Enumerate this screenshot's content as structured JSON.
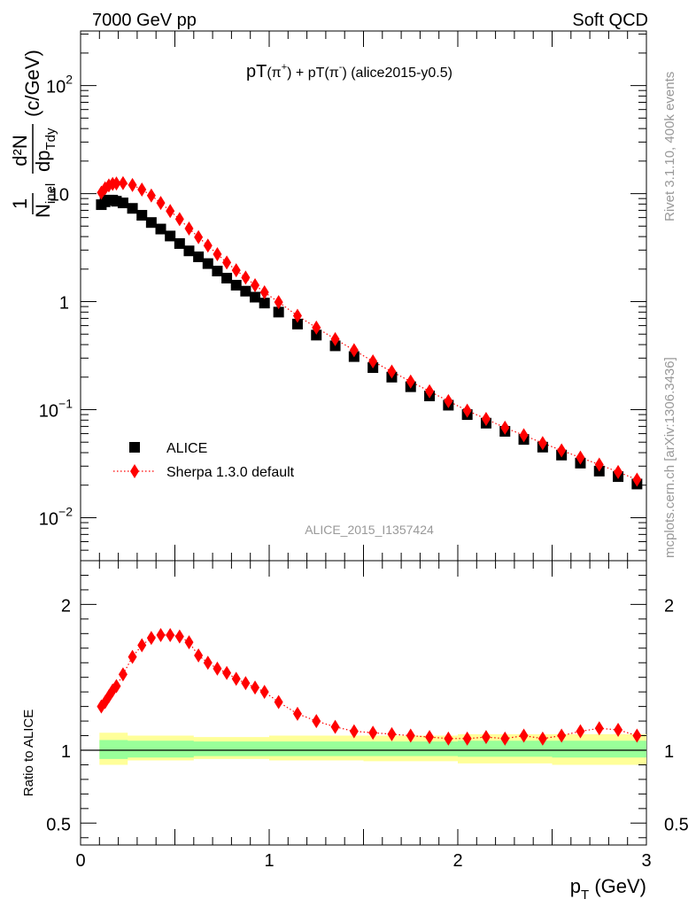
{
  "header": {
    "left": "7000 GeV pp",
    "right": "Soft QCD"
  },
  "side_labels": {
    "top": "Rivet 3.1.10,  400k events",
    "bottom": "mcplots.cern.ch [arXiv:1306.3436]"
  },
  "analysis_label": "ALICE_2015_I1357424",
  "chart_data": [
    {
      "type": "scatter",
      "title": "pT(π+) + pT(π-) (alice2015-y0.5)",
      "title_parts": {
        "a": "pT",
        "b": "(π",
        "c": "+",
        "d": ")",
        "e": " + pT(π",
        "f": "-",
        "g": ")",
        "h": " (alice2015-y0.5)"
      },
      "xlabel": "p_T (GeV)",
      "ylabel": "1/N_inel d²N/dp_T dy (c/GeV)",
      "ylabel_parts": {
        "one": "1",
        "n": "N",
        "inel": "inel",
        "d2n": "d²N",
        "dp": "dp",
        "tdy": "Tdy",
        "unit": "(c/GeV)"
      },
      "xlim": [
        0,
        3
      ],
      "ylim": [
        0.004,
        320
      ],
      "yscale": "log",
      "ytick_labels": [
        {
          "value": 0.01,
          "base": "10",
          "exp": "−2"
        },
        {
          "value": 0.1,
          "base": "10",
          "exp": "−1"
        },
        {
          "value": 1,
          "base": "1",
          "exp": ""
        },
        {
          "value": 10,
          "base": "10",
          "exp": ""
        },
        {
          "value": 100,
          "base": "10",
          "exp": "2"
        }
      ],
      "legend": {
        "placement": "lower-left",
        "entries": [
          "ALICE",
          "Sherpa 1.3.0 default"
        ]
      },
      "series": [
        {
          "name": "ALICE",
          "marker": "square",
          "color": "#000000",
          "x": [
            0.11,
            0.13,
            0.15,
            0.17,
            0.19,
            0.225,
            0.275,
            0.325,
            0.375,
            0.425,
            0.475,
            0.525,
            0.575,
            0.625,
            0.675,
            0.725,
            0.775,
            0.825,
            0.875,
            0.925,
            0.975,
            1.05,
            1.15,
            1.25,
            1.35,
            1.45,
            1.55,
            1.65,
            1.75,
            1.85,
            1.95,
            2.05,
            2.15,
            2.25,
            2.35,
            2.45,
            2.55,
            2.65,
            2.75,
            2.85,
            2.95
          ],
          "y": [
            7.9,
            8.4,
            8.7,
            8.7,
            8.5,
            8.2,
            7.3,
            6.3,
            5.4,
            4.7,
            4.05,
            3.45,
            2.95,
            2.6,
            2.25,
            1.92,
            1.65,
            1.42,
            1.25,
            1.1,
            0.97,
            0.8,
            0.62,
            0.49,
            0.39,
            0.31,
            0.245,
            0.2,
            0.163,
            0.134,
            0.11,
            0.09,
            0.075,
            0.063,
            0.053,
            0.045,
            0.038,
            0.032,
            0.027,
            0.024,
            0.0205
          ]
        },
        {
          "name": "Sherpa 1.3.0 default",
          "marker": "diamond",
          "line": "dotted",
          "color": "#ff0000",
          "x": [
            0.11,
            0.13,
            0.15,
            0.17,
            0.19,
            0.225,
            0.275,
            0.325,
            0.375,
            0.425,
            0.475,
            0.525,
            0.575,
            0.625,
            0.675,
            0.725,
            0.775,
            0.825,
            0.875,
            0.925,
            0.975,
            1.05,
            1.15,
            1.25,
            1.35,
            1.45,
            1.55,
            1.65,
            1.75,
            1.85,
            1.95,
            2.05,
            2.15,
            2.25,
            2.35,
            2.45,
            2.55,
            2.65,
            2.75,
            2.85,
            2.95
          ],
          "y": [
            10.2,
            11.2,
            11.9,
            12.3,
            12.4,
            12.5,
            12.0,
            10.9,
            9.6,
            8.2,
            6.9,
            5.8,
            4.75,
            3.95,
            3.3,
            2.75,
            2.3,
            1.95,
            1.67,
            1.42,
            1.22,
            0.99,
            0.74,
            0.575,
            0.45,
            0.355,
            0.28,
            0.225,
            0.182,
            0.148,
            0.12,
            0.098,
            0.082,
            0.068,
            0.058,
            0.049,
            0.042,
            0.036,
            0.031,
            0.0265,
            0.0225
          ]
        }
      ]
    },
    {
      "type": "scatter",
      "ylabel": "Ratio to ALICE",
      "xlabel": "p_T (GeV)",
      "xlim": [
        0,
        3
      ],
      "ylim": [
        0.35,
        2.3
      ],
      "yticks": [
        0.5,
        1,
        2
      ],
      "ytick_text": [
        "0.5",
        "1",
        "2"
      ],
      "xticks": [
        0,
        1,
        2,
        3
      ],
      "xtick_text": [
        "0",
        "1",
        "2",
        "3"
      ],
      "bands": [
        {
          "name": "total uncertainty",
          "color": "#ffff99",
          "x": [
            0.1,
            0.25,
            0.6,
            1.0,
            1.5,
            2.0,
            2.5,
            3.0
          ],
          "lo": [
            0.9,
            0.93,
            0.94,
            0.93,
            0.925,
            0.91,
            0.9,
            0.84
          ],
          "hi": [
            1.12,
            1.1,
            1.09,
            1.1,
            1.1,
            1.11,
            1.11,
            1.26
          ]
        },
        {
          "name": "statistical uncertainty",
          "color": "#99ff99",
          "x": [
            0.1,
            0.25,
            0.6,
            1.0,
            1.5,
            2.0,
            2.5,
            3.0
          ],
          "lo": [
            0.94,
            0.95,
            0.96,
            0.96,
            0.96,
            0.955,
            0.95,
            0.92
          ],
          "hi": [
            1.07,
            1.065,
            1.06,
            1.06,
            1.06,
            1.065,
            1.065,
            1.13
          ]
        }
      ],
      "reference_line": 1,
      "series": [
        {
          "name": "Sherpa 1.3.0 default",
          "marker": "diamond",
          "line": "dotted",
          "color": "#ff0000",
          "x": [
            0.11,
            0.13,
            0.15,
            0.17,
            0.19,
            0.225,
            0.275,
            0.325,
            0.375,
            0.425,
            0.475,
            0.525,
            0.575,
            0.625,
            0.675,
            0.725,
            0.775,
            0.825,
            0.875,
            0.925,
            0.975,
            1.05,
            1.15,
            1.25,
            1.35,
            1.45,
            1.55,
            1.65,
            1.75,
            1.85,
            1.95,
            2.05,
            2.15,
            2.25,
            2.35,
            2.45,
            2.55,
            2.65,
            2.75,
            2.85,
            2.95
          ],
          "y": [
            1.3,
            1.33,
            1.37,
            1.41,
            1.44,
            1.52,
            1.64,
            1.72,
            1.77,
            1.79,
            1.79,
            1.78,
            1.74,
            1.65,
            1.6,
            1.56,
            1.53,
            1.49,
            1.46,
            1.43,
            1.4,
            1.33,
            1.25,
            1.2,
            1.16,
            1.13,
            1.12,
            1.11,
            1.1,
            1.09,
            1.08,
            1.08,
            1.09,
            1.08,
            1.1,
            1.08,
            1.1,
            1.13,
            1.15,
            1.14,
            1.1
          ]
        }
      ]
    }
  ]
}
